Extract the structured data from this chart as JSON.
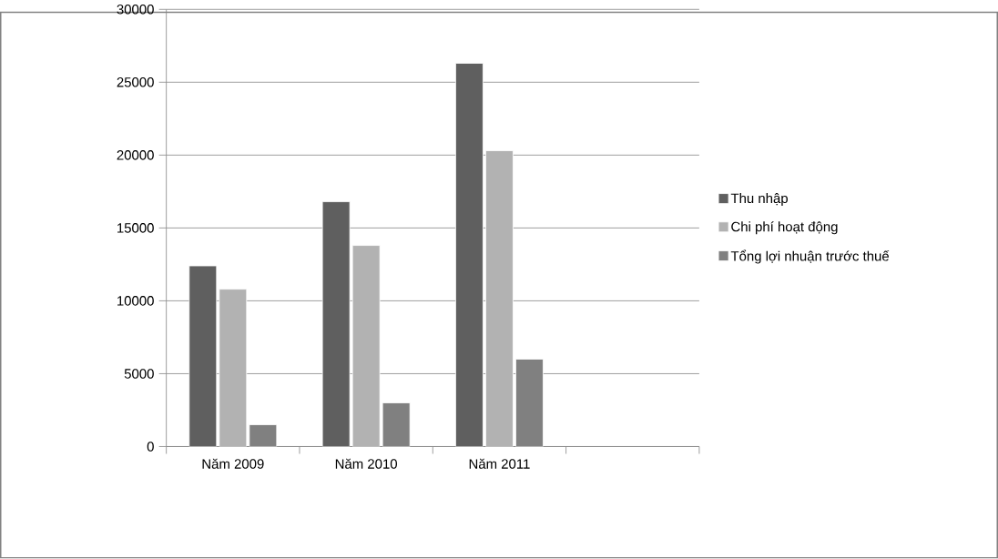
{
  "chart_data": {
    "type": "bar",
    "categories": [
      "Năm 2009",
      "Năm 2010",
      "Năm 2011",
      null
    ],
    "series": [
      {
        "name": "Thu nhập",
        "color": "#5f5f5f",
        "values": [
          12400,
          16800,
          26300,
          null
        ]
      },
      {
        "name": "Chi phí hoạt động",
        "color": "#b2b2b2",
        "values": [
          10800,
          13800,
          20300,
          null
        ]
      },
      {
        "name": "Tổng lợi nhuận trước thuế",
        "color": "#808080",
        "values": [
          1500,
          3000,
          6000,
          null
        ]
      }
    ],
    "ylim": [
      0,
      30000
    ],
    "yticks": [
      0,
      5000,
      10000,
      15000,
      20000,
      25000,
      30000
    ],
    "grid": "y",
    "legend": "right"
  }
}
